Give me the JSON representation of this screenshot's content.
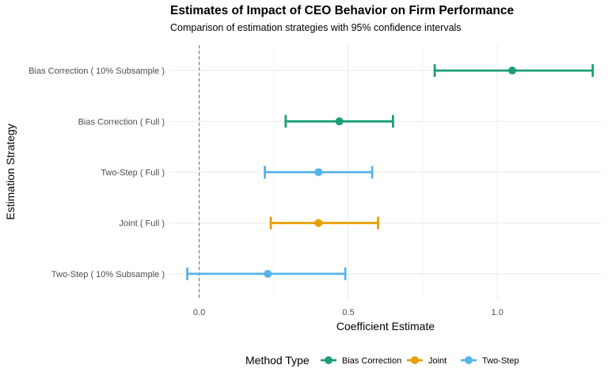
{
  "chart_data": {
    "type": "errorbar",
    "title": "Estimates of Impact of CEO Behavior on Firm Performance",
    "subtitle": "Comparison of estimation strategies with 95% confidence intervals",
    "xlabel": "Coefficient Estimate",
    "ylabel": "Estimation Strategy",
    "xlim": [
      -0.1,
      1.35
    ],
    "x_ticks": [
      0.0,
      0.5,
      1.0
    ],
    "x_tick_labels": [
      "0.0",
      "0.5",
      "1.0"
    ],
    "reference_line": 0,
    "grid": true,
    "legend_title": "Method Type",
    "legend_position": "bottom",
    "methods": [
      {
        "name": "Bias Correction",
        "color": "#1b9e77"
      },
      {
        "name": "Joint",
        "color": "#e69f00"
      },
      {
        "name": "Two-Step",
        "color": "#56b4e9"
      }
    ],
    "points": [
      {
        "label": "Bias Correction ( 10% Subsample )",
        "method": "Bias Correction",
        "estimate": 1.05,
        "lower": 0.79,
        "upper": 1.32
      },
      {
        "label": "Bias Correction ( Full )",
        "method": "Bias Correction",
        "estimate": 0.47,
        "lower": 0.29,
        "upper": 0.65
      },
      {
        "label": "Two-Step ( Full )",
        "method": "Two-Step",
        "estimate": 0.4,
        "lower": 0.22,
        "upper": 0.58
      },
      {
        "label": "Joint ( Full )",
        "method": "Joint",
        "estimate": 0.4,
        "lower": 0.24,
        "upper": 0.6
      },
      {
        "label": "Two-Step ( 10% Subsample )",
        "method": "Two-Step",
        "estimate": 0.23,
        "lower": -0.04,
        "upper": 0.49
      }
    ]
  }
}
